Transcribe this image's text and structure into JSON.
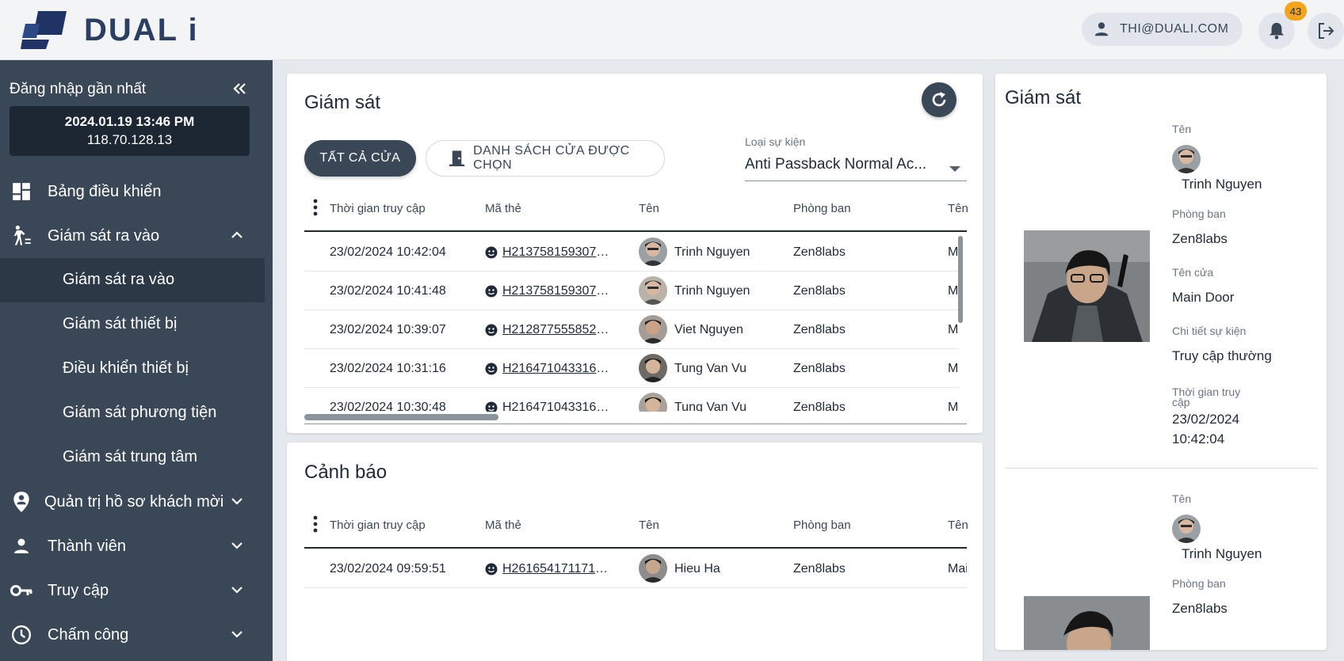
{
  "header": {
    "brand": "DUAL i",
    "user_email": "THI@DUALI.COM",
    "notification_count": "43",
    "colors": {
      "badge": "#f3a41b",
      "brand": "#2c3f63"
    }
  },
  "sidebar": {
    "last_login_title": "Đăng nhập gần nhất",
    "last_login_time": "2024.01.19 13:46 PM",
    "last_login_ip": "118.70.128.13",
    "items": [
      {
        "label": "Bảng điều khiển",
        "icon": "dashboard-icon"
      },
      {
        "label": "Giám sát ra vào",
        "icon": "walk-access-icon",
        "expanded": true
      },
      {
        "label": "Quản trị hồ sơ khách mời",
        "icon": "guest-profile-icon"
      },
      {
        "label": "Thành viên",
        "icon": "person-icon"
      },
      {
        "label": "Truy cập",
        "icon": "key-icon"
      },
      {
        "label": "Chấm công",
        "icon": "clock-icon"
      }
    ],
    "subitems": [
      {
        "label": "Giám sát ra vào",
        "active": true
      },
      {
        "label": "Giám sát thiết bị"
      },
      {
        "label": "Điều khiển thiết bị"
      },
      {
        "label": "Giám sát phương tiện"
      },
      {
        "label": "Giám sát trung tâm"
      }
    ]
  },
  "monitor": {
    "title": "Giám sát",
    "btn_all": "TẤT CẢ CỬA",
    "btn_list": "DANH SÁCH CỬA ĐƯỢC CHỌN",
    "event_type_label": "Loại sự kiện",
    "event_type_value": "Anti Passback Normal Ac...",
    "columns": [
      "Thời gian truy cập",
      "Mã thẻ",
      "Tên",
      "Phòng ban",
      "Tên"
    ],
    "rows": [
      {
        "time": "23/02/2024 10:42:04",
        "card": "H2137581593078…",
        "name": "Trinh Nguyen",
        "dept": "Zen8labs",
        "door": "M"
      },
      {
        "time": "23/02/2024 10:41:48",
        "card": "H2137581593078…",
        "name": "Trinh Nguyen",
        "dept": "Zen8labs",
        "door": "M"
      },
      {
        "time": "23/02/2024 10:39:07",
        "card": "H2128775558524…",
        "name": "Viet Nguyen",
        "dept": "Zen8labs",
        "door": "M"
      },
      {
        "time": "23/02/2024 10:31:16",
        "card": "H2164710433164…",
        "name": "Tung Van Vu",
        "dept": "Zen8labs",
        "door": "M"
      },
      {
        "time": "23/02/2024 10:30:48",
        "card": "H2164710433164…",
        "name": "Tung Van Vu",
        "dept": "Zen8labs",
        "door": "M"
      }
    ]
  },
  "alert": {
    "title": "Cảnh báo",
    "columns": [
      "Thời gian truy cập",
      "Mã thẻ",
      "Tên",
      "Phòng ban",
      "Tên"
    ],
    "rows": [
      {
        "time": "23/02/2024 09:59:51",
        "card": "H2616541711710…",
        "name": "Hieu Ha",
        "dept": "Zen8labs",
        "door": "Mai"
      }
    ]
  },
  "detail": {
    "title": "Giám sát",
    "entries": [
      {
        "name_label": "Tên",
        "name": "Trinh Nguyen",
        "dept_label": "Phòng ban",
        "dept": "Zen8labs",
        "door_label": "Tên cửa",
        "door": "Main Door",
        "event_label": "Chi tiết sự kiện",
        "event": "Truy cập thường",
        "time_label": "Thời gian truy cập",
        "time_date": "23/02/2024",
        "time_clock": "10:42:04"
      },
      {
        "name_label": "Tên",
        "name": "Trinh Nguyen",
        "dept_label": "Phòng ban",
        "dept": "Zen8labs"
      }
    ]
  }
}
